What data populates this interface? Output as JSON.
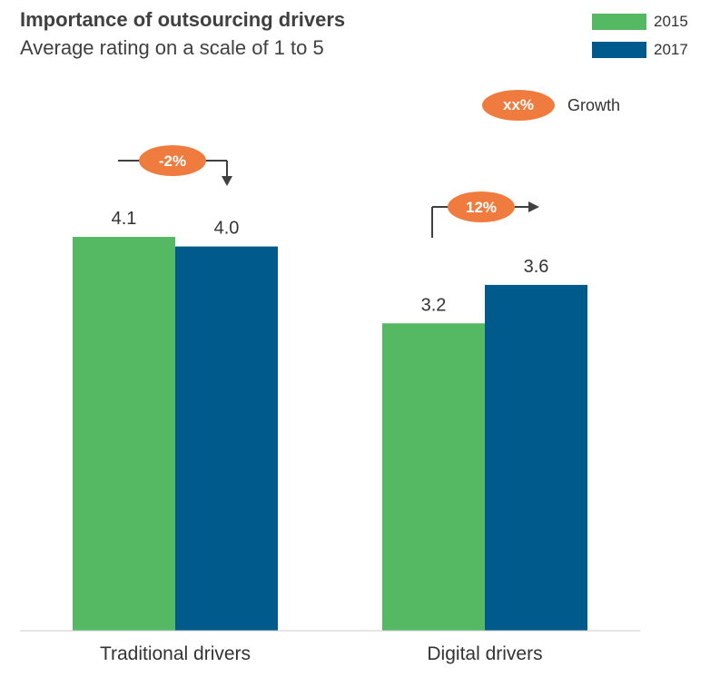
{
  "title": "Importance of outsourcing drivers",
  "subtitle": "Average rating on a scale of 1 to 5",
  "legend": [
    {
      "label": "2015",
      "color": "#55b862"
    },
    {
      "label": "2017",
      "color": "#005a8c"
    }
  ],
  "growth_key": {
    "pill": "xx%",
    "label": "Growth",
    "color": "#f07b3f"
  },
  "chart_data": {
    "type": "bar",
    "title": "Importance of outsourcing drivers",
    "subtitle": "Average rating on a scale of 1 to 5",
    "categories": [
      "Traditional drivers",
      "Digital drivers"
    ],
    "series": [
      {
        "name": "2015",
        "values": [
          4.1,
          3.2
        ],
        "labels": [
          "4.1",
          "3.2"
        ],
        "color": "#55b862"
      },
      {
        "name": "2017",
        "values": [
          4.0,
          3.6
        ],
        "labels": [
          "4.0",
          "3.6"
        ],
        "color": "#005a8c"
      }
    ],
    "growth": [
      {
        "category": "Traditional drivers",
        "label": "-2%",
        "direction": "down"
      },
      {
        "category": "Digital drivers",
        "label": "12%",
        "direction": "up"
      }
    ],
    "ylim": [
      0,
      4.1
    ],
    "grid": false,
    "legend_position": "top-right"
  }
}
